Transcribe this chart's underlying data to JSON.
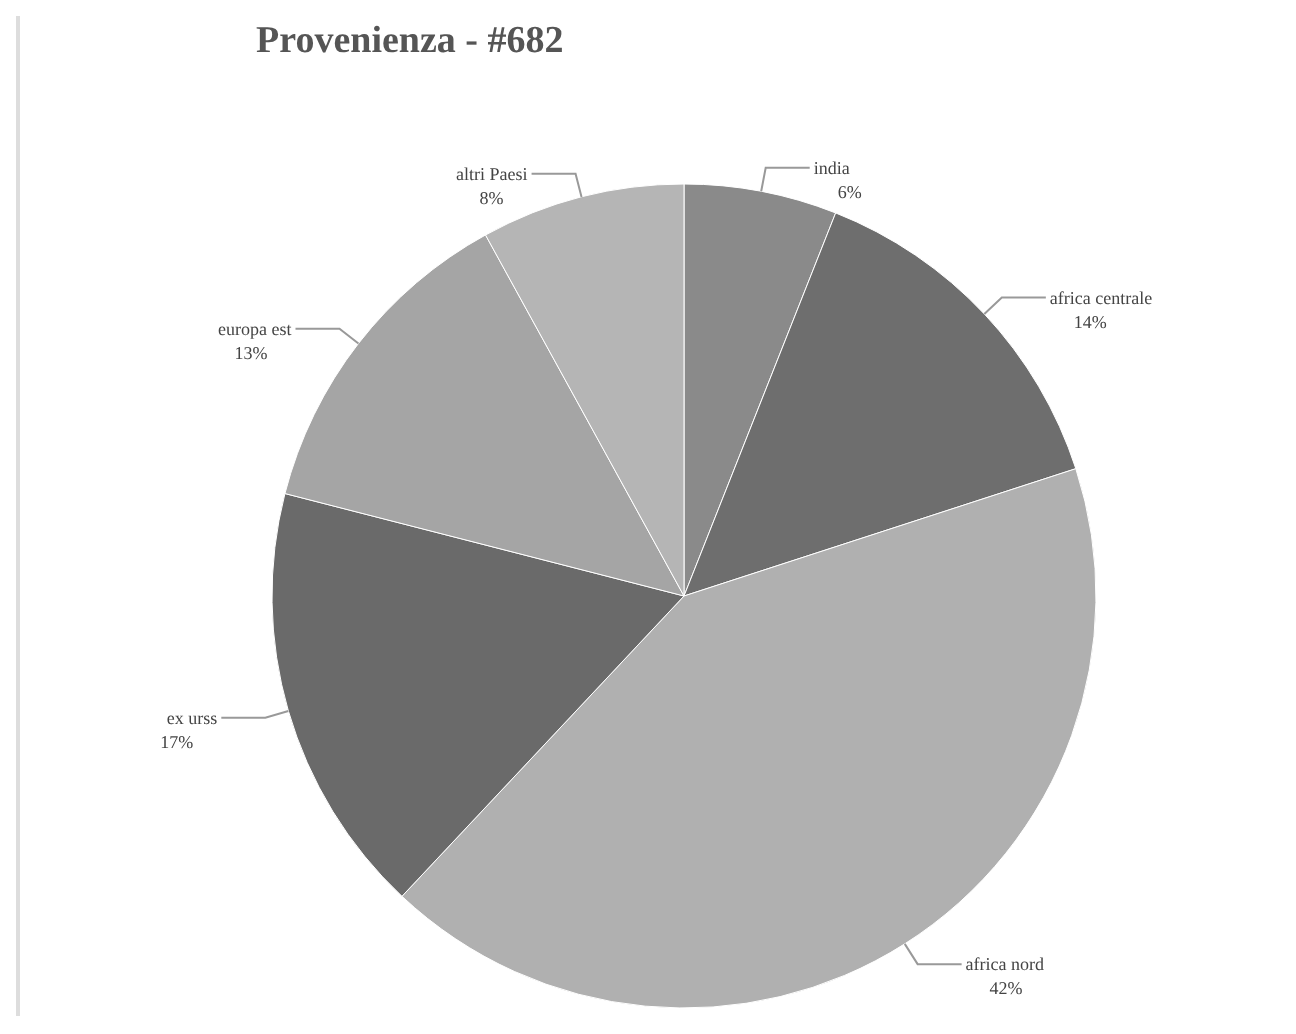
{
  "chart_data": {
    "type": "pie",
    "title": "Provenienza - #682",
    "categories": [
      "india",
      "africa centrale",
      "africa nord",
      "ex urss",
      "europa est",
      "altri Paesi"
    ],
    "values": [
      6,
      14,
      42,
      17,
      13,
      8
    ],
    "value_labels": [
      "6%",
      "14%",
      "42%",
      "17%",
      "13%",
      "8%"
    ],
    "colors": [
      "#8a8a8a",
      "#6e6e6e",
      "#b0b0b0",
      "#6a6a6a",
      "#a5a5a5",
      "#b5b5b5"
    ],
    "legend": false
  }
}
